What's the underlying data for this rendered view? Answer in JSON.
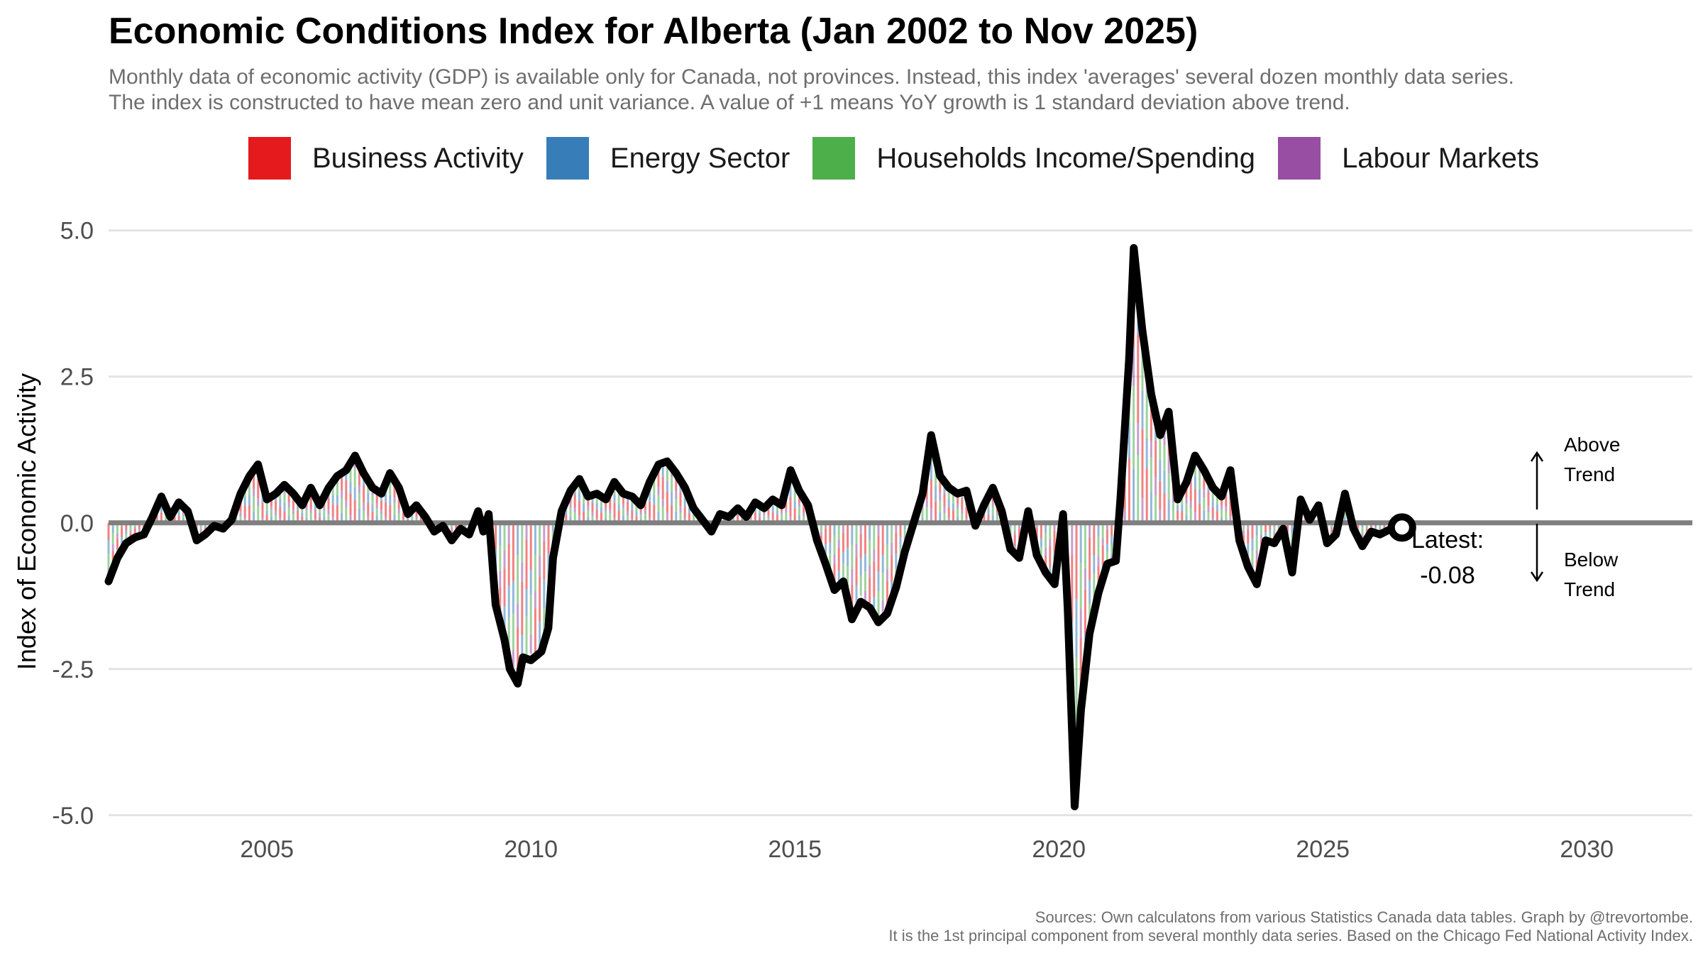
{
  "header": {
    "title": "Economic Conditions Index for Alberta (Jan 2002 to Nov 2025)",
    "subtitle_line1": "Monthly data of economic activity (GDP) is available only for Canada, not provinces. Instead, this index 'averages' several dozen monthly data series.",
    "subtitle_line2": "The index is constructed to have mean zero and unit variance. A value of +1 means YoY growth is 1 standard deviation above trend."
  },
  "legend": [
    {
      "label": "Business Activity",
      "color": "#e41a1c"
    },
    {
      "label": "Energy Sector",
      "color": "#377eb8"
    },
    {
      "label": "Households Income/Spending",
      "color": "#4daf4a"
    },
    {
      "label": "Labour Markets",
      "color": "#984ea3"
    }
  ],
  "annotations": {
    "latest_label": "Latest:",
    "latest_value": "-0.08",
    "above_label_1": "Above",
    "above_label_2": "Trend",
    "below_label_1": "Below",
    "below_label_2": "Trend"
  },
  "caption": {
    "line1": "Sources: Own calculatons from various Statistics Canada data tables. Graph by @trevortombe.",
    "line2": "It is the 1st principal component from several monthly data series. Based on the Chicago Fed National Activity Index."
  },
  "chart_data": {
    "type": "line",
    "title": "Economic Conditions Index for Alberta (Jan 2002 to Nov 2025)",
    "xlabel": "",
    "ylabel": "Index of Economic Activity",
    "xlim": [
      2002.0,
      2032.0
    ],
    "ylim": [
      -5.5,
      5.3
    ],
    "x_ticks": [
      2005,
      2010,
      2015,
      2020,
      2025,
      2030
    ],
    "y_ticks": [
      5.0,
      2.5,
      0.0,
      -2.5,
      -5.0
    ],
    "y_tick_labels": [
      "5.0",
      "2.5",
      "0.0",
      "-2.5",
      "-5.0"
    ],
    "grid": true,
    "legend_position": "top",
    "series": [
      {
        "name": "Index of Economic Activity",
        "color": "#000000",
        "points": [
          [
            2002.0,
            -1.0
          ],
          [
            2002.17,
            -0.6
          ],
          [
            2002.33,
            -0.35
          ],
          [
            2002.5,
            -0.25
          ],
          [
            2002.67,
            -0.2
          ],
          [
            2002.83,
            0.1
          ],
          [
            2003.0,
            0.45
          ],
          [
            2003.17,
            0.1
          ],
          [
            2003.33,
            0.35
          ],
          [
            2003.5,
            0.2
          ],
          [
            2003.67,
            -0.3
          ],
          [
            2003.83,
            -0.2
          ],
          [
            2004.0,
            -0.05
          ],
          [
            2004.17,
            -0.1
          ],
          [
            2004.33,
            0.05
          ],
          [
            2004.5,
            0.5
          ],
          [
            2004.67,
            0.8
          ],
          [
            2004.83,
            1.0
          ],
          [
            2005.0,
            0.4
          ],
          [
            2005.17,
            0.5
          ],
          [
            2005.33,
            0.65
          ],
          [
            2005.5,
            0.5
          ],
          [
            2005.67,
            0.3
          ],
          [
            2005.83,
            0.6
          ],
          [
            2006.0,
            0.3
          ],
          [
            2006.17,
            0.6
          ],
          [
            2006.33,
            0.8
          ],
          [
            2006.5,
            0.9
          ],
          [
            2006.67,
            1.15
          ],
          [
            2006.83,
            0.85
          ],
          [
            2007.0,
            0.6
          ],
          [
            2007.17,
            0.5
          ],
          [
            2007.33,
            0.85
          ],
          [
            2007.5,
            0.6
          ],
          [
            2007.67,
            0.15
          ],
          [
            2007.83,
            0.3
          ],
          [
            2008.0,
            0.1
          ],
          [
            2008.17,
            -0.15
          ],
          [
            2008.33,
            -0.05
          ],
          [
            2008.5,
            -0.3
          ],
          [
            2008.67,
            -0.1
          ],
          [
            2008.83,
            -0.2
          ],
          [
            2009.0,
            0.2
          ],
          [
            2009.1,
            -0.15
          ],
          [
            2009.2,
            0.15
          ],
          [
            2009.33,
            -1.4
          ],
          [
            2009.5,
            -2.0
          ],
          [
            2009.6,
            -2.5
          ],
          [
            2009.75,
            -2.75
          ],
          [
            2009.85,
            -2.3
          ],
          [
            2010.0,
            -2.35
          ],
          [
            2010.2,
            -2.2
          ],
          [
            2010.33,
            -1.8
          ],
          [
            2010.42,
            -0.6
          ],
          [
            2010.58,
            0.2
          ],
          [
            2010.75,
            0.55
          ],
          [
            2010.92,
            0.75
          ],
          [
            2011.08,
            0.45
          ],
          [
            2011.25,
            0.5
          ],
          [
            2011.42,
            0.4
          ],
          [
            2011.58,
            0.7
          ],
          [
            2011.75,
            0.5
          ],
          [
            2011.92,
            0.45
          ],
          [
            2012.08,
            0.3
          ],
          [
            2012.25,
            0.7
          ],
          [
            2012.42,
            1.0
          ],
          [
            2012.58,
            1.05
          ],
          [
            2012.75,
            0.85
          ],
          [
            2012.92,
            0.6
          ],
          [
            2013.08,
            0.25
          ],
          [
            2013.25,
            0.05
          ],
          [
            2013.42,
            -0.15
          ],
          [
            2013.58,
            0.15
          ],
          [
            2013.75,
            0.1
          ],
          [
            2013.92,
            0.25
          ],
          [
            2014.08,
            0.1
          ],
          [
            2014.25,
            0.35
          ],
          [
            2014.42,
            0.25
          ],
          [
            2014.58,
            0.4
          ],
          [
            2014.75,
            0.3
          ],
          [
            2014.92,
            0.9
          ],
          [
            2015.08,
            0.55
          ],
          [
            2015.25,
            0.3
          ],
          [
            2015.42,
            -0.3
          ],
          [
            2015.58,
            -0.7
          ],
          [
            2015.75,
            -1.15
          ],
          [
            2015.92,
            -1.0
          ],
          [
            2016.08,
            -1.65
          ],
          [
            2016.25,
            -1.35
          ],
          [
            2016.42,
            -1.45
          ],
          [
            2016.58,
            -1.7
          ],
          [
            2016.75,
            -1.55
          ],
          [
            2016.92,
            -1.1
          ],
          [
            2017.08,
            -0.5
          ],
          [
            2017.25,
            0.0
          ],
          [
            2017.42,
            0.5
          ],
          [
            2017.58,
            1.5
          ],
          [
            2017.75,
            0.8
          ],
          [
            2017.92,
            0.6
          ],
          [
            2018.08,
            0.5
          ],
          [
            2018.25,
            0.55
          ],
          [
            2018.42,
            -0.05
          ],
          [
            2018.58,
            0.3
          ],
          [
            2018.75,
            0.6
          ],
          [
            2018.92,
            0.2
          ],
          [
            2019.08,
            -0.45
          ],
          [
            2019.25,
            -0.6
          ],
          [
            2019.42,
            0.2
          ],
          [
            2019.58,
            -0.55
          ],
          [
            2019.75,
            -0.85
          ],
          [
            2019.92,
            -1.05
          ],
          [
            2020.08,
            0.15
          ],
          [
            2020.17,
            -1.5
          ],
          [
            2020.3,
            -4.85
          ],
          [
            2020.42,
            -3.2
          ],
          [
            2020.58,
            -1.9
          ],
          [
            2020.75,
            -1.2
          ],
          [
            2020.92,
            -0.7
          ],
          [
            2021.08,
            -0.65
          ],
          [
            2021.17,
            0.45
          ],
          [
            2021.33,
            2.8
          ],
          [
            2021.42,
            4.7
          ],
          [
            2021.58,
            3.3
          ],
          [
            2021.75,
            2.2
          ],
          [
            2021.92,
            1.5
          ],
          [
            2022.08,
            1.9
          ],
          [
            2022.25,
            0.4
          ],
          [
            2022.42,
            0.7
          ],
          [
            2022.58,
            1.15
          ],
          [
            2022.75,
            0.9
          ],
          [
            2022.92,
            0.6
          ],
          [
            2023.08,
            0.45
          ],
          [
            2023.25,
            0.9
          ],
          [
            2023.42,
            -0.3
          ],
          [
            2023.58,
            -0.75
          ],
          [
            2023.75,
            -1.05
          ],
          [
            2023.92,
            -0.3
          ],
          [
            2024.08,
            -0.35
          ],
          [
            2024.25,
            -0.1
          ],
          [
            2024.42,
            -0.85
          ],
          [
            2024.58,
            0.4
          ],
          [
            2024.75,
            0.05
          ],
          [
            2024.92,
            0.3
          ],
          [
            2025.08,
            -0.35
          ],
          [
            2025.25,
            -0.2
          ],
          [
            2025.42,
            0.5
          ],
          [
            2025.58,
            -0.1
          ],
          [
            2025.75,
            -0.4
          ],
          [
            2025.92,
            -0.15
          ],
          [
            2026.08,
            -0.2
          ],
          [
            2026.3,
            -0.1
          ],
          [
            2026.5,
            -0.08
          ]
        ]
      }
    ],
    "latest_point": {
      "x": 2026.5,
      "y": -0.08
    },
    "components": {
      "note": "Stacked monthly contributions shown as thin translucent bars around the index line",
      "series_order": [
        "Business Activity",
        "Energy Sector",
        "Households Income/Spending",
        "Labour Markets"
      ]
    }
  }
}
